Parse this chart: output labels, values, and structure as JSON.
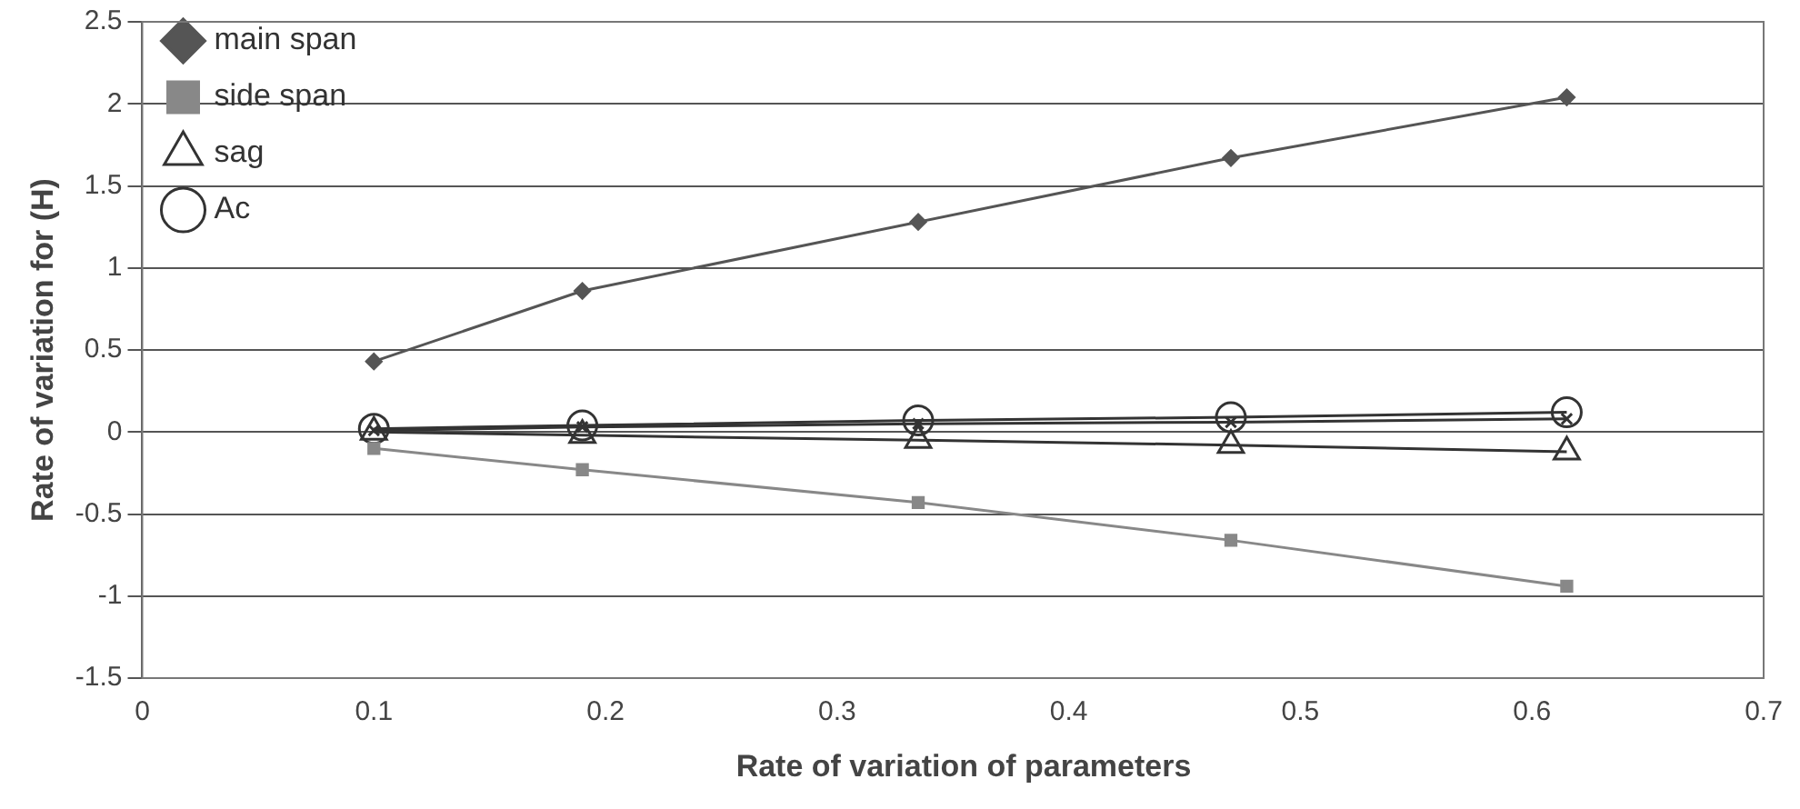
{
  "chart_data": {
    "type": "line",
    "xlabel": "Rate of variation of parameters",
    "ylabel": "Rate of variation for (H)",
    "xlim": [
      0,
      0.7
    ],
    "xticks": [
      0,
      0.1,
      0.2,
      0.3,
      0.4,
      0.5,
      0.6,
      0.7
    ],
    "ylim": [
      -1.5,
      2.5
    ],
    "yticks": [
      -1.5,
      -1,
      -0.5,
      0,
      0.5,
      1,
      1.5,
      2,
      2.5
    ],
    "grid": "y",
    "legend": "top left",
    "x": [
      0.1,
      0.19,
      0.335,
      0.47,
      0.615
    ],
    "series": [
      {
        "name": "main span",
        "color": "#555555",
        "marker": "diamond",
        "values": [
          0.43,
          0.86,
          1.28,
          1.67,
          2.04
        ]
      },
      {
        "name": "side span",
        "color": "#888888",
        "marker": "square",
        "values": [
          -0.1,
          -0.23,
          -0.43,
          -0.66,
          -0.94
        ]
      },
      {
        "name": "sag",
        "color": "#333333",
        "marker": "triangle",
        "values": [
          0,
          -0.02,
          -0.05,
          -0.08,
          -0.12
        ]
      },
      {
        "name": "Ac",
        "color": "#333333",
        "marker": "circle",
        "values": [
          0.02,
          0.04,
          0.07,
          0.09,
          0.12
        ]
      },
      {
        "color": "#333333",
        "marker": "cross",
        "values": [
          0.01,
          0.03,
          0.05,
          0.06,
          0.08
        ]
      }
    ]
  }
}
